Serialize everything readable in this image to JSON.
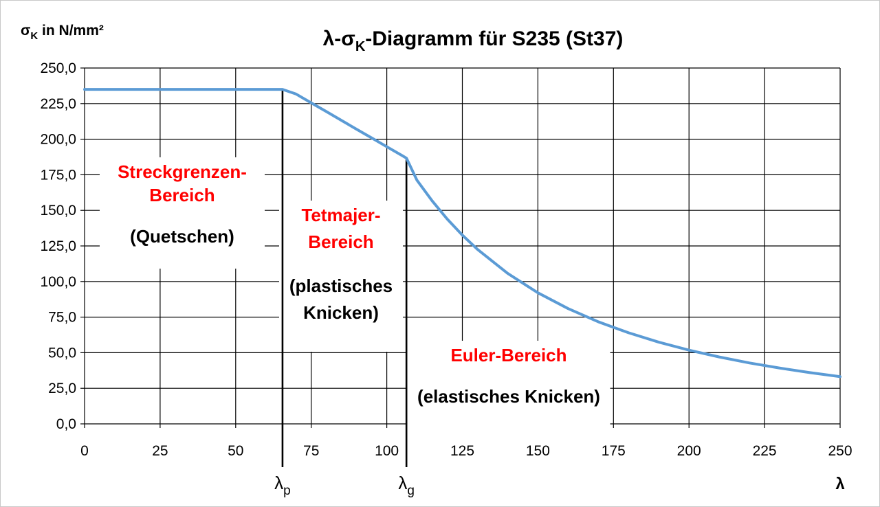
{
  "title": {
    "main": "λ-σ",
    "sub": "K",
    "rest": "-Diagramm für S235 (St37)"
  },
  "y_axis_label": {
    "main": "σ",
    "sub": "K",
    "rest": " in N/mm²"
  },
  "x_axis_label": "λ",
  "markers": [
    {
      "main": "λ",
      "sub": "p",
      "x": 65.5
    },
    {
      "main": "λ",
      "sub": "g",
      "x": 106.5
    }
  ],
  "annotations": [
    {
      "key": "streck",
      "lines": [
        "Streckgrenzen-",
        "Bereich"
      ],
      "color": "#ff0000",
      "sub": [
        "(Quetschen)"
      ],
      "sub_color": "#000000"
    },
    {
      "key": "tetmajer",
      "lines": [
        "Tetmajer-",
        "Bereich"
      ],
      "color": "#ff0000",
      "sub": [
        "(plastisches",
        "Knicken)"
      ],
      "sub_color": "#000000"
    },
    {
      "key": "euler",
      "lines": [
        "Euler-Bereich"
      ],
      "color": "#ff0000",
      "sub": [
        "(elastisches Knicken)"
      ],
      "sub_color": "#000000"
    }
  ],
  "chart_data": {
    "type": "line",
    "title": "λ-σK-Diagramm für S235 (St37)",
    "xlabel": "λ",
    "ylabel": "σK in N/mm²",
    "xlim": [
      0,
      250
    ],
    "ylim": [
      0,
      250
    ],
    "x_ticks": [
      0,
      25,
      50,
      75,
      100,
      125,
      150,
      175,
      200,
      225,
      250
    ],
    "y_ticks": [
      0,
      25,
      50,
      75,
      100,
      125,
      150,
      175,
      200,
      225,
      250
    ],
    "x_tick_labels": [
      "0",
      "25",
      "50",
      "75",
      "100",
      "125",
      "150",
      "175",
      "200",
      "225",
      "250"
    ],
    "y_tick_labels": [
      "0,0",
      "25,0",
      "50,0",
      "75,0",
      "100,0",
      "125,0",
      "150,0",
      "175,0",
      "200,0",
      "225,0",
      "250,0"
    ],
    "grid": true,
    "line_color": "#5b9bd5",
    "series": [
      {
        "x": [
          0,
          10,
          20,
          30,
          40,
          50,
          60,
          65.5,
          70,
          75,
          80,
          85,
          90,
          95,
          100,
          105,
          106.5,
          110,
          115,
          120,
          125,
          130,
          140,
          150,
          160,
          170,
          180,
          190,
          200,
          210,
          220,
          230,
          240,
          250
        ],
        "values": [
          235,
          235,
          235,
          235,
          235,
          235,
          235,
          235,
          231.7,
          225.5,
          219.4,
          213.2,
          207,
          200.9,
          194.7,
          188.6,
          186.7,
          171.1,
          156.7,
          143.9,
          132.6,
          122.6,
          105.7,
          92.1,
          81,
          71.7,
          64,
          57.4,
          51.8,
          47,
          42.8,
          39.2,
          36,
          33.2
        ]
      }
    ]
  }
}
